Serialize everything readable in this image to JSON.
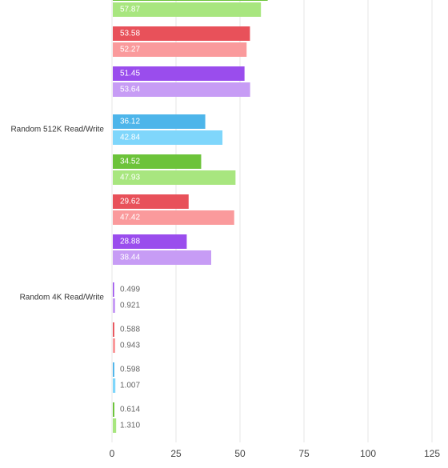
{
  "chart_data": {
    "type": "grouped-pair-bar",
    "xlim": [
      0,
      125
    ],
    "xticks": [
      0,
      25,
      50,
      75,
      100,
      125
    ],
    "grid": true,
    "groups": [
      {
        "pairs": [
          {
            "color": "#6cc33a",
            "light_color": "#a8e67f",
            "values": [
              60.5,
              57.87
            ]
          },
          {
            "color": "#e8515a",
            "light_color": "#fa9a9c",
            "values": [
              53.58,
              52.27
            ]
          },
          {
            "color": "#9a4ded",
            "light_color": "#c79cf5",
            "values": [
              51.45,
              53.64
            ]
          }
        ]
      },
      {
        "label": "Random 512K Read/Write",
        "pairs": [
          {
            "color": "#4db5ea",
            "light_color": "#7fd6fb",
            "values": [
              36.12,
              42.84
            ]
          },
          {
            "color": "#6cc33a",
            "light_color": "#a8e67f",
            "values": [
              34.52,
              47.93
            ]
          },
          {
            "color": "#e8515a",
            "light_color": "#fa9a9c",
            "values": [
              29.62,
              47.42
            ]
          },
          {
            "color": "#9a4ded",
            "light_color": "#c79cf5",
            "values": [
              28.88,
              38.44
            ]
          }
        ]
      },
      {
        "label": "Random 4K Read/Write",
        "pairs": [
          {
            "color": "#9a4ded",
            "light_color": "#c79cf5",
            "values": [
              0.499,
              0.921
            ]
          },
          {
            "color": "#e8515a",
            "light_color": "#fa9a9c",
            "values": [
              0.588,
              0.943
            ]
          },
          {
            "color": "#4db5ea",
            "light_color": "#7fd6fb",
            "values": [
              0.598,
              1.007
            ]
          },
          {
            "color": "#6cc33a",
            "light_color": "#a8e67f",
            "values": [
              0.614,
              1.31
            ],
            "value_labels": [
              "0.614",
              "1.310"
            ]
          }
        ]
      }
    ]
  }
}
